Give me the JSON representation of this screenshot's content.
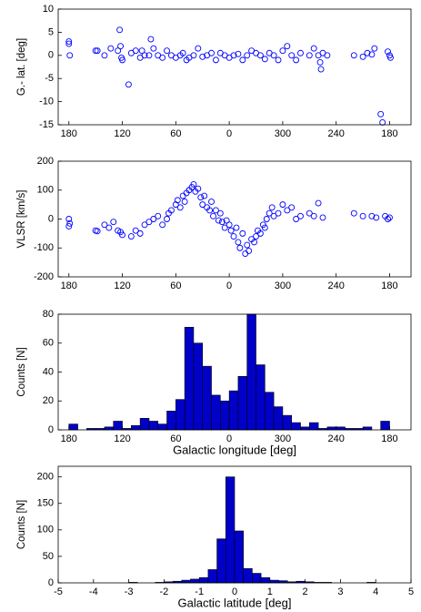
{
  "chart_data": [
    {
      "type": "scatter",
      "ylabel": "G.- lat. [deg]",
      "color": "#0000ff",
      "xlim": [
        192,
        -204
      ],
      "ylim": [
        -15,
        10
      ],
      "xticks": [
        180,
        120,
        60,
        0,
        {
          "value": -60,
          "label": "300"
        },
        {
          "value": -120,
          "label": "240"
        },
        {
          "value": -180,
          "label": "180"
        }
      ],
      "yticks": [
        10,
        5,
        0,
        -5,
        -10,
        -15
      ],
      "x": [
        180,
        180,
        179,
        150,
        148,
        140,
        133,
        125,
        123,
        122,
        121,
        120,
        113,
        110,
        105,
        100,
        98,
        95,
        90,
        88,
        85,
        80,
        75,
        70,
        65,
        60,
        55,
        52,
        48,
        45,
        40,
        35,
        30,
        25,
        20,
        15,
        10,
        5,
        0,
        -5,
        -10,
        -15,
        -20,
        -25,
        -30,
        -35,
        -40,
        -45,
        -50,
        -55,
        -60,
        -65,
        -70,
        -75,
        -80,
        -90,
        -95,
        -100,
        -105,
        -110,
        -140,
        -150,
        -155,
        -160,
        -163,
        -170,
        -172,
        -178,
        -180,
        -181,
        -102,
        -103
      ],
      "values": [
        2.5,
        3,
        0,
        1,
        1,
        0,
        1.5,
        1,
        5.5,
        2,
        -0.5,
        -1,
        -6.3,
        0.5,
        1,
        -0.5,
        1,
        0,
        0,
        3.5,
        1.5,
        0,
        -0.5,
        1,
        0,
        -0.5,
        0,
        0.5,
        -1,
        -0.5,
        0,
        1.5,
        -0.3,
        0,
        0.5,
        -1,
        0.5,
        0,
        -0.5,
        0,
        0.3,
        -1,
        0,
        1,
        0.5,
        0,
        -0.8,
        0.5,
        0,
        -1,
        1,
        2,
        0,
        -1,
        0.5,
        0,
        1.5,
        0,
        0.5,
        0,
        0,
        -0.3,
        0.5,
        0.2,
        1.5,
        -12.7,
        -14.5,
        0.8,
        0,
        -0.5,
        -1.5,
        -3
      ]
    },
    {
      "type": "scatter",
      "ylabel": "VLSR [km/s]",
      "color": "#0000ff",
      "xlim": [
        192,
        -204
      ],
      "ylim": [
        -200,
        200
      ],
      "xticks": [
        180,
        120,
        60,
        0,
        {
          "value": -60,
          "label": "300"
        },
        {
          "value": -120,
          "label": "240"
        },
        {
          "value": -180,
          "label": "180"
        }
      ],
      "yticks": [
        200,
        100,
        0,
        -100,
        -200
      ],
      "x": [
        180,
        179,
        180,
        150,
        148,
        140,
        135,
        130,
        125,
        122,
        120,
        110,
        105,
        100,
        95,
        90,
        85,
        80,
        75,
        70,
        68,
        65,
        60,
        58,
        55,
        52,
        50,
        48,
        45,
        42,
        40,
        38,
        35,
        32,
        30,
        28,
        25,
        22,
        20,
        18,
        15,
        12,
        10,
        8,
        5,
        3,
        0,
        -2,
        -5,
        -8,
        -10,
        -12,
        -15,
        -18,
        -20,
        -22,
        -25,
        -28,
        -30,
        -32,
        -35,
        -38,
        -40,
        -42,
        -45,
        -48,
        -50,
        -55,
        -60,
        -65,
        -70,
        -75,
        -80,
        -90,
        -95,
        -100,
        -105,
        -140,
        -150,
        -160,
        -165,
        -175,
        -178,
        -180
      ],
      "values": [
        0,
        -15,
        -25,
        -40,
        -42,
        -20,
        -30,
        -10,
        -40,
        -45,
        -55,
        -60,
        -40,
        -50,
        -20,
        -10,
        0,
        10,
        -20,
        0,
        20,
        30,
        50,
        65,
        40,
        80,
        60,
        90,
        100,
        110,
        120,
        95,
        105,
        75,
        50,
        80,
        40,
        30,
        60,
        10,
        30,
        -5,
        20,
        -10,
        -30,
        -5,
        -20,
        -40,
        -60,
        -30,
        -80,
        -100,
        -50,
        -120,
        -90,
        -110,
        -70,
        -80,
        -60,
        -40,
        -50,
        -20,
        -30,
        0,
        20,
        40,
        10,
        20,
        50,
        30,
        40,
        0,
        10,
        20,
        10,
        55,
        5,
        20,
        10,
        10,
        5,
        10,
        0,
        5
      ]
    },
    {
      "type": "histogram",
      "xlabel": "Galactic longitude [deg]",
      "ylabel": "Counts [N]",
      "color": "#0000c8",
      "xlim": [
        192,
        -204
      ],
      "ylim": [
        0,
        80
      ],
      "xticks": [
        180,
        120,
        60,
        0,
        {
          "value": -60,
          "label": "300"
        },
        {
          "value": -120,
          "label": "240"
        },
        {
          "value": -180,
          "label": "180"
        }
      ],
      "yticks": [
        0,
        20,
        40,
        60,
        80
      ],
      "bins": [
        180,
        170,
        160,
        150,
        140,
        130,
        120,
        110,
        100,
        90,
        80,
        70,
        60,
        50,
        40,
        30,
        20,
        10,
        0,
        -10,
        -20,
        -30,
        -40,
        -50,
        -60,
        -70,
        -80,
        -90,
        -100,
        -110,
        -120,
        -130,
        -140,
        -150,
        -160,
        -170,
        -180
      ],
      "values": [
        4,
        0,
        1,
        1,
        2,
        6,
        1,
        3,
        8,
        6,
        4,
        13,
        21,
        71,
        60,
        44,
        24,
        20,
        27,
        37,
        80,
        45,
        26,
        16,
        10,
        5,
        2,
        5,
        1,
        2,
        2,
        1,
        1,
        2,
        0,
        6
      ]
    },
    {
      "type": "histogram",
      "xlabel": "Galactic latitude [deg]",
      "ylabel": "Counts [N]",
      "color": "#0000c8",
      "xlim": [
        -5,
        5
      ],
      "ylim": [
        0,
        220
      ],
      "xticks": [
        -5,
        -4,
        -3,
        -2,
        -1,
        0,
        1,
        2,
        3,
        4,
        5
      ],
      "yticks": [
        0,
        50,
        100,
        150,
        200
      ],
      "bins": [
        -5,
        -4.75,
        -4.5,
        -4.25,
        -4,
        -3.75,
        -3.5,
        -3.25,
        -3,
        -2.75,
        -2.5,
        -2.25,
        -2,
        -1.75,
        -1.5,
        -1.25,
        -1,
        -0.75,
        -0.5,
        -0.25,
        0,
        0.25,
        0.5,
        0.75,
        1,
        1.25,
        1.5,
        1.75,
        2,
        2.25,
        2.5,
        2.75,
        3,
        3.25,
        3.5,
        3.75,
        4,
        4.25,
        4.5,
        4.75,
        5
      ],
      "values": [
        0,
        0,
        0,
        0,
        0,
        0,
        0,
        0,
        1,
        0,
        0,
        1,
        2,
        3,
        5,
        7,
        10,
        25,
        83,
        200,
        98,
        27,
        18,
        10,
        5,
        4,
        2,
        3,
        2,
        1,
        1,
        0,
        0,
        0,
        0,
        1,
        0,
        0,
        0,
        0
      ]
    }
  ]
}
